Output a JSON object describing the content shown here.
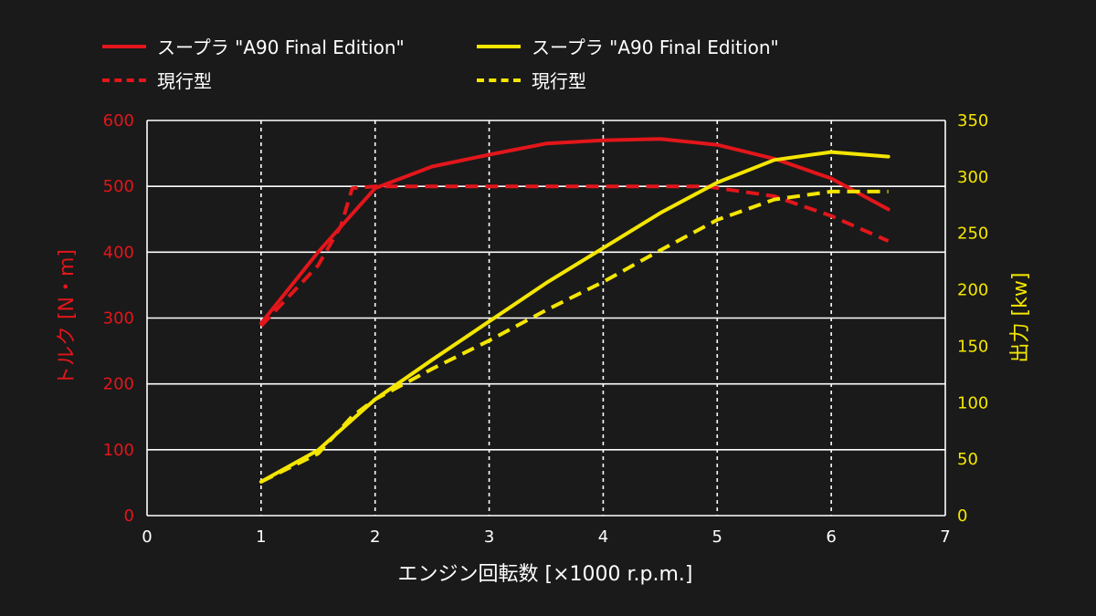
{
  "colors": {
    "background": "#1a1a1a",
    "torque": "#e2161b",
    "power": "#f4e600",
    "grid": "#ffffff",
    "text": "#ffffff"
  },
  "legend": [
    {
      "label": "スープラ \"A90 Final Edition\"",
      "color_key": "torque",
      "style": "solid"
    },
    {
      "label": "スープラ \"A90 Final Edition\"",
      "color_key": "power",
      "style": "solid"
    },
    {
      "label": "現行型",
      "color_key": "torque",
      "style": "dashed"
    },
    {
      "label": "現行型",
      "color_key": "power",
      "style": "dashed"
    }
  ],
  "chart_data": {
    "type": "line",
    "xlabel": "エンジン回転数 [×1000 r.p.m.]",
    "ylabel_left": "トルク [N・m]",
    "ylabel_right": "出力 [kw]",
    "xlim": [
      0,
      7
    ],
    "ylim_left": [
      0,
      600
    ],
    "ylim_right": [
      0,
      350
    ],
    "x_ticks": [
      "0",
      "1",
      "2",
      "3",
      "4",
      "5",
      "6",
      "7"
    ],
    "y_ticks_left": [
      "0",
      "100",
      "200",
      "300",
      "400",
      "500",
      "600"
    ],
    "y_ticks_right": [
      "0",
      "50",
      "100",
      "150",
      "200",
      "250",
      "300",
      "350"
    ],
    "vertical_grid": "dashed",
    "horizontal_grid": "solid",
    "legend_position": "top-left",
    "series": [
      {
        "name": "スープラ \"A90 Final Edition\"",
        "axis": "left",
        "style": "solid",
        "color_key": "torque",
        "x": [
          1,
          1.5,
          2,
          2.5,
          3,
          3.5,
          4,
          4.5,
          5,
          5.5,
          6,
          6.5
        ],
        "y": [
          292,
          400,
          497,
          530,
          548,
          565,
          570,
          572,
          563,
          542,
          512,
          465
        ]
      },
      {
        "name": "現行型",
        "axis": "left",
        "style": "dashed",
        "color_key": "torque",
        "x": [
          1,
          1.5,
          1.7,
          1.8,
          2,
          3,
          4,
          4.5,
          4.9,
          5.5,
          6,
          6.5
        ],
        "y": [
          288,
          380,
          440,
          497,
          500,
          500,
          500,
          500,
          500,
          485,
          455,
          417
        ]
      },
      {
        "name": "スープラ \"A90 Final Edition\"",
        "axis": "right",
        "style": "solid",
        "color_key": "power",
        "x": [
          1,
          1.5,
          2,
          2.5,
          3,
          3.5,
          4,
          4.5,
          5,
          5.5,
          6,
          6.5
        ],
        "y": [
          30,
          58,
          103,
          138,
          172,
          206,
          237,
          268,
          295,
          315,
          322,
          318
        ]
      },
      {
        "name": "現行型",
        "axis": "right",
        "style": "dashed",
        "color_key": "power",
        "x": [
          1,
          1.5,
          1.8,
          2,
          2.5,
          3,
          3.5,
          4,
          4.5,
          5,
          5.5,
          6,
          6.5
        ],
        "y": [
          30,
          55,
          88,
          103,
          130,
          155,
          182,
          207,
          235,
          262,
          280,
          287,
          287
        ]
      }
    ]
  }
}
